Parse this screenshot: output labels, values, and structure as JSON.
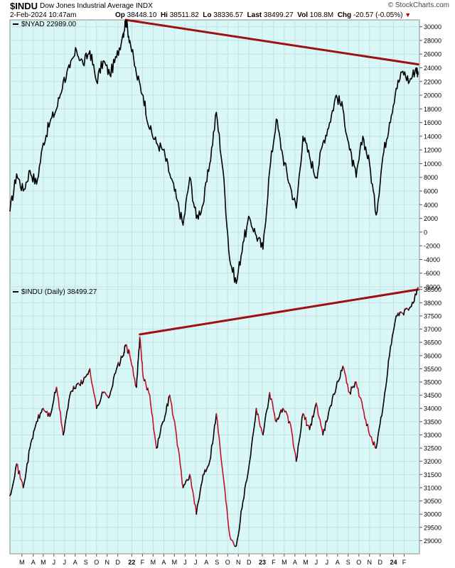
{
  "header": {
    "symbol": "$INDU",
    "description": "Dow Jones Industrial Average INDX",
    "timestamp": "2-Feb-2024 10:47am",
    "open_label": "Op",
    "open": "38448.10",
    "high_label": "Hi",
    "high": "38511.82",
    "low_label": "Lo",
    "low": "38336.57",
    "last_label": "Last",
    "last": "38499.27",
    "vol_label": "Vol",
    "vol": "108.8M",
    "chg_label": "Chg",
    "chg": "-20.57 (-0.05%)",
    "brand": "© StockCharts.com"
  },
  "colors": {
    "background": "#d9f7f7",
    "line": "#000000",
    "trend": "#a01010",
    "down_segment": "#c4102a"
  },
  "chart_data": [
    {
      "type": "line",
      "legend": "$NYAD 22989.00",
      "ylim": [
        -8000,
        31000
      ],
      "yticks": [
        -8000,
        -6000,
        -4000,
        -2000,
        0,
        2000,
        4000,
        6000,
        8000,
        10000,
        12000,
        14000,
        16000,
        18000,
        20000,
        22000,
        24000,
        26000,
        28000,
        30000
      ],
      "points": [
        [
          0,
          3000
        ],
        [
          1,
          8500
        ],
        [
          2,
          6000
        ],
        [
          3,
          9000
        ],
        [
          4,
          7000
        ],
        [
          5,
          13000
        ],
        [
          6,
          16000
        ],
        [
          7,
          18000
        ],
        [
          8,
          22000
        ],
        [
          9,
          24000
        ],
        [
          10,
          26500
        ],
        [
          11,
          24500
        ],
        [
          12,
          26500
        ],
        [
          13,
          22000
        ],
        [
          14,
          25000
        ],
        [
          15,
          23000
        ],
        [
          16,
          25500
        ],
        [
          17,
          29000
        ],
        [
          17.4,
          31000
        ],
        [
          18,
          28000
        ],
        [
          19,
          23000
        ],
        [
          20,
          20000
        ],
        [
          21,
          15000
        ],
        [
          22,
          13000
        ],
        [
          23,
          12000
        ],
        [
          24,
          8500
        ],
        [
          25,
          5000
        ],
        [
          26,
          1000
        ],
        [
          27,
          8000
        ],
        [
          28,
          2000
        ],
        [
          29,
          4000
        ],
        [
          30,
          10000
        ],
        [
          31,
          17500
        ],
        [
          32,
          9000
        ],
        [
          33,
          -4000
        ],
        [
          34,
          -7500
        ],
        [
          35,
          -1500
        ],
        [
          36,
          2000
        ],
        [
          37,
          -500
        ],
        [
          38,
          -2500
        ],
        [
          39,
          9000
        ],
        [
          40,
          16500
        ],
        [
          41,
          11000
        ],
        [
          42,
          7000
        ],
        [
          43,
          3500
        ],
        [
          44,
          14000
        ],
        [
          45,
          11000
        ],
        [
          46,
          8000
        ],
        [
          47,
          13000
        ],
        [
          48,
          16000
        ],
        [
          49,
          20000
        ],
        [
          50,
          18000
        ],
        [
          51,
          12000
        ],
        [
          52,
          8000
        ],
        [
          53,
          14000
        ],
        [
          54,
          10000
        ],
        [
          55,
          2500
        ],
        [
          56,
          11000
        ],
        [
          57,
          16000
        ],
        [
          58,
          21000
        ],
        [
          59,
          23500
        ],
        [
          60,
          22000
        ],
        [
          61,
          24000
        ],
        [
          61.3,
          23000
        ]
      ]
    },
    {
      "type": "line",
      "legend": "$INDU (Daily) 38499.27",
      "ylim": [
        28500,
        38600
      ],
      "yticks": [
        29000,
        29500,
        30000,
        30500,
        31000,
        31500,
        32000,
        32500,
        33000,
        33500,
        34000,
        34500,
        35000,
        35500,
        36000,
        36500,
        37000,
        37500,
        38000,
        38500
      ],
      "points": [
        [
          0,
          30700
        ],
        [
          1,
          31900
        ],
        [
          2,
          31000
        ],
        [
          3,
          32500
        ],
        [
          4,
          33500
        ],
        [
          5,
          34000
        ],
        [
          6,
          33700
        ],
        [
          7,
          34800
        ],
        [
          8,
          33000
        ],
        [
          9,
          34500
        ],
        [
          10,
          34900
        ],
        [
          11,
          35000
        ],
        [
          12,
          35500
        ],
        [
          13,
          34000
        ],
        [
          14,
          34600
        ],
        [
          15,
          34500
        ],
        [
          16,
          35500
        ],
        [
          17,
          36000
        ],
        [
          17.4,
          36400
        ],
        [
          18,
          36000
        ],
        [
          19,
          34800
        ],
        [
          19.5,
          36700
        ],
        [
          20,
          35200
        ],
        [
          21,
          34500
        ],
        [
          22,
          32500
        ],
        [
          23,
          33500
        ],
        [
          24,
          34500
        ],
        [
          25,
          33000
        ],
        [
          26,
          31000
        ],
        [
          27,
          31500
        ],
        [
          28,
          30000
        ],
        [
          29,
          31500
        ],
        [
          30,
          32000
        ],
        [
          31,
          33800
        ],
        [
          32,
          31500
        ],
        [
          33,
          29200
        ],
        [
          34,
          28800
        ],
        [
          35,
          30500
        ],
        [
          36,
          32000
        ],
        [
          37,
          34000
        ],
        [
          38,
          33000
        ],
        [
          39,
          34600
        ],
        [
          40,
          33500
        ],
        [
          41,
          34000
        ],
        [
          42,
          33500
        ],
        [
          43,
          32000
        ],
        [
          44,
          33800
        ],
        [
          45,
          33200
        ],
        [
          46,
          34200
        ],
        [
          47,
          33000
        ],
        [
          48,
          34000
        ],
        [
          49,
          34800
        ],
        [
          50,
          35600
        ],
        [
          51,
          34600
        ],
        [
          52,
          35000
        ],
        [
          53,
          34000
        ],
        [
          54,
          33000
        ],
        [
          55,
          32500
        ],
        [
          56,
          34000
        ],
        [
          57,
          36000
        ],
        [
          58,
          37500
        ],
        [
          59,
          37600
        ],
        [
          60,
          37800
        ],
        [
          61,
          38300
        ],
        [
          61.3,
          38500
        ]
      ]
    }
  ],
  "trendlines": [
    {
      "panel": 0,
      "from": [
        17.4,
        31000
      ],
      "to": [
        61.3,
        24500
      ]
    },
    {
      "panel": 1,
      "from": [
        19.5,
        36800
      ],
      "to": [
        61.3,
        38500
      ]
    }
  ],
  "x_axis": {
    "range": [
      0,
      61.5
    ],
    "ticks": [
      {
        "x": 1.8,
        "label": "M"
      },
      {
        "x": 3.5,
        "label": "A"
      },
      {
        "x": 5.0,
        "label": "M"
      },
      {
        "x": 6.6,
        "label": "J"
      },
      {
        "x": 8.2,
        "label": "J"
      },
      {
        "x": 9.8,
        "label": "A"
      },
      {
        "x": 11.4,
        "label": "S"
      },
      {
        "x": 13.0,
        "label": "O"
      },
      {
        "x": 14.6,
        "label": "N"
      },
      {
        "x": 16.2,
        "label": "D"
      },
      {
        "x": 18.3,
        "label": "22",
        "bold": true
      },
      {
        "x": 19.9,
        "label": "F"
      },
      {
        "x": 21.5,
        "label": "M"
      },
      {
        "x": 23.1,
        "label": "A"
      },
      {
        "x": 24.7,
        "label": "M"
      },
      {
        "x": 26.3,
        "label": "J"
      },
      {
        "x": 27.9,
        "label": "J"
      },
      {
        "x": 29.5,
        "label": "A"
      },
      {
        "x": 31.1,
        "label": "S"
      },
      {
        "x": 32.7,
        "label": "O"
      },
      {
        "x": 34.3,
        "label": "N"
      },
      {
        "x": 35.9,
        "label": "D"
      },
      {
        "x": 37.9,
        "label": "23",
        "bold": true
      },
      {
        "x": 39.6,
        "label": "F"
      },
      {
        "x": 41.2,
        "label": "M"
      },
      {
        "x": 42.8,
        "label": "A"
      },
      {
        "x": 44.4,
        "label": "M"
      },
      {
        "x": 46.0,
        "label": "J"
      },
      {
        "x": 47.6,
        "label": "J"
      },
      {
        "x": 49.2,
        "label": "A"
      },
      {
        "x": 50.8,
        "label": "S"
      },
      {
        "x": 52.4,
        "label": "O"
      },
      {
        "x": 54.0,
        "label": "N"
      },
      {
        "x": 55.6,
        "label": "D"
      },
      {
        "x": 57.6,
        "label": "24",
        "bold": true
      },
      {
        "x": 59.2,
        "label": "F"
      }
    ]
  }
}
